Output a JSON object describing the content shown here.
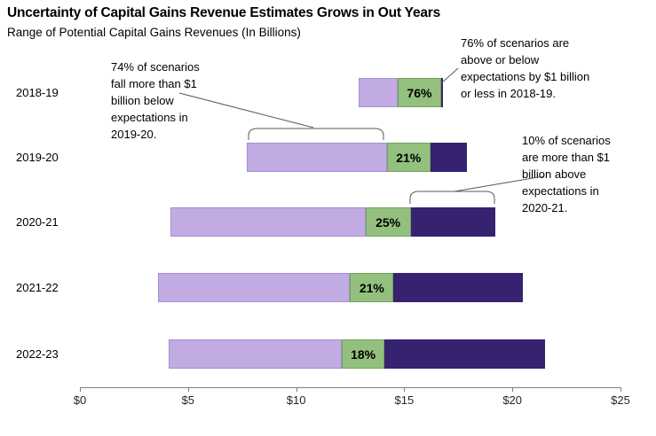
{
  "chart_data": {
    "type": "bar",
    "orientation": "horizontal-stacked-range",
    "title": "Uncertainty of Capital Gains Revenue Estimates Grows in Out Years",
    "subtitle": "Range of Potential Capital Gains Revenues (In Billions)",
    "xlabel": "",
    "ylabel": "",
    "xlim": [
      0,
      25
    ],
    "grid": false,
    "legend": "none",
    "units": "billions of dollars",
    "series": [
      {
        "name": "more-than-1-billion-below-expectations",
        "color": "#c2abe2"
      },
      {
        "name": "within-1-billion-of-expectations",
        "color": "#93c07e"
      },
      {
        "name": "more-than-1-billion-above-expectations",
        "color": "#372271"
      }
    ],
    "categories": [
      "2018-19",
      "2019-20",
      "2020-21",
      "2021-22",
      "2022-23"
    ],
    "bars": [
      {
        "category": "2018-19",
        "start": 12.9,
        "middle_start": 14.7,
        "above_start": 16.7,
        "end": 16.8,
        "middle_label": "76%"
      },
      {
        "category": "2019-20",
        "start": 7.7,
        "middle_start": 14.2,
        "above_start": 16.2,
        "end": 17.9,
        "middle_label": "21%"
      },
      {
        "category": "2020-21",
        "start": 4.2,
        "middle_start": 13.2,
        "above_start": 15.3,
        "end": 19.2,
        "middle_label": "25%"
      },
      {
        "category": "2021-22",
        "start": 3.6,
        "middle_start": 12.5,
        "above_start": 14.5,
        "end": 20.5,
        "middle_label": "21%"
      },
      {
        "category": "2022-23",
        "start": 4.1,
        "middle_start": 12.1,
        "above_start": 14.1,
        "end": 21.5,
        "middle_label": "18%"
      }
    ],
    "xticks": [
      {
        "v": 0,
        "label": "$0"
      },
      {
        "v": 5,
        "label": "$5"
      },
      {
        "v": 10,
        "label": "$10"
      },
      {
        "v": 15,
        "label": "$15"
      },
      {
        "v": 20,
        "label": "$20"
      },
      {
        "v": 25,
        "label": "$25"
      }
    ]
  },
  "annotations": {
    "below_2019_20": {
      "text": "74% of scenarios\nfall more than $1\nbillion below\nexpectations in\n2019-20."
    },
    "within_2018_19": {
      "text": "76% of scenarios are\nabove or below\nexpectations by $1 billion\nor less in 2018-19."
    },
    "above_2020_21": {
      "text": "10% of scenarios\nare more than $1\nbillion above\nexpectations in\n2020-21."
    }
  },
  "colors": {
    "below_fill": "#c2abe2",
    "middle_fill": "#93c07e",
    "above_fill": "#372271",
    "connector": "#595959",
    "axis": "#7f7f7f"
  }
}
